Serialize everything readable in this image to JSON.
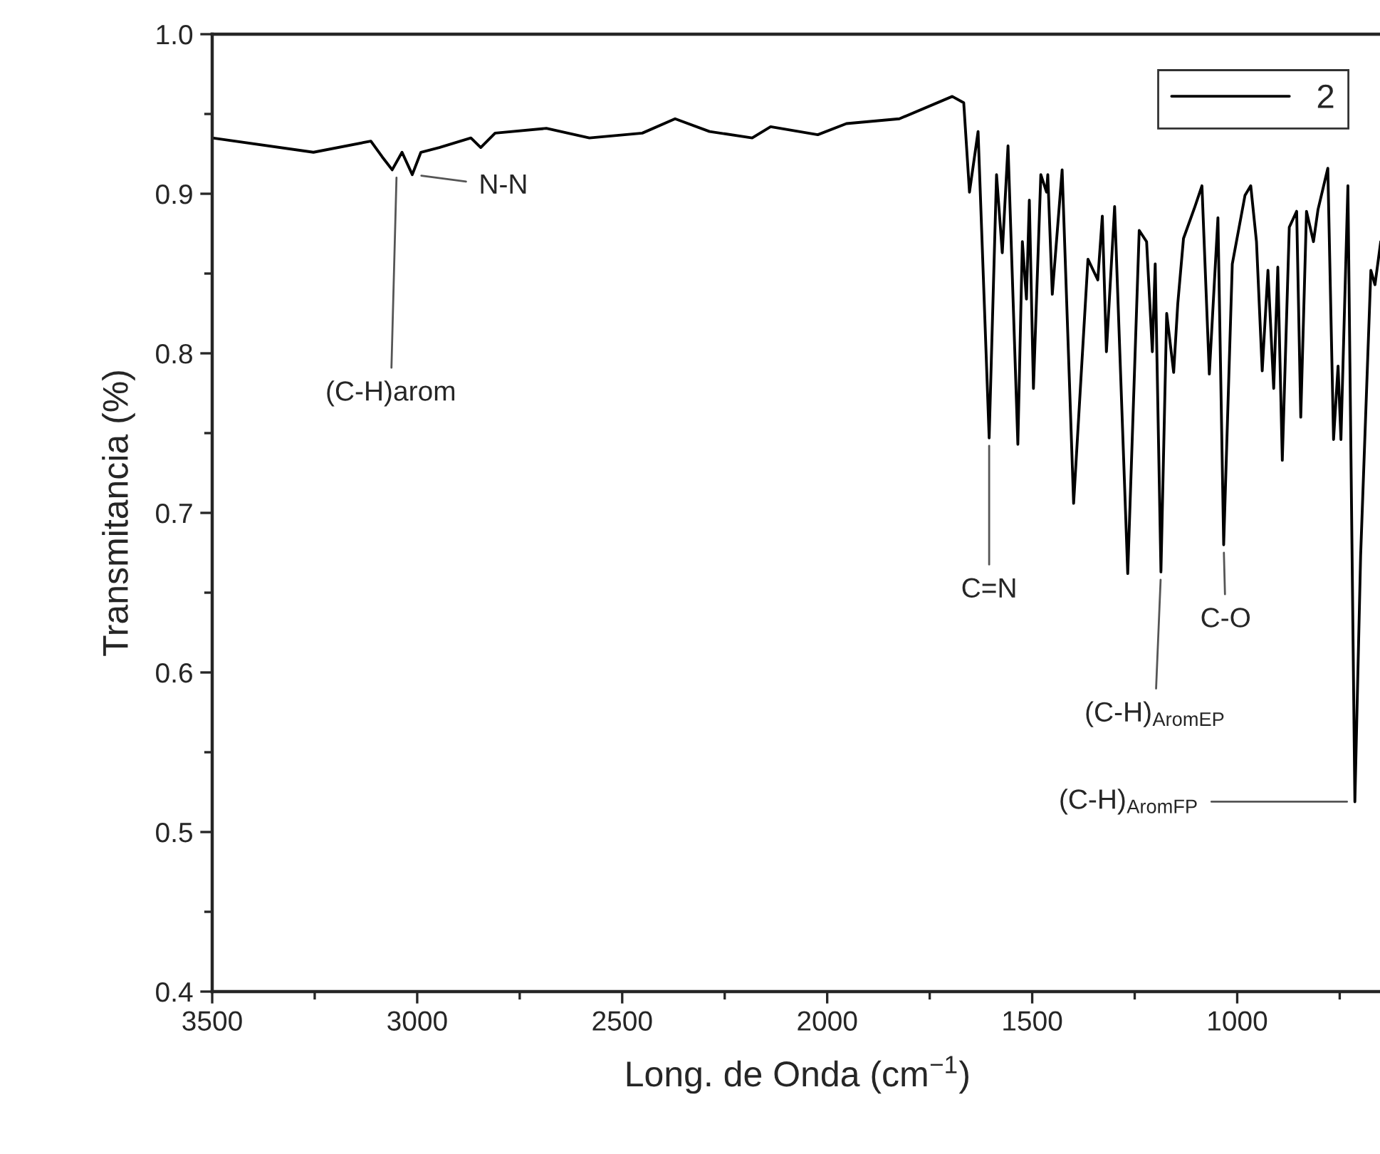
{
  "chart_data": {
    "type": "line",
    "xlabel": "Long. de Onda (cm$^{−1}$)",
    "ylabel": "Transmitancia (%)",
    "xlim": [
      3500,
      645
    ],
    "xticks": [
      3500,
      3000,
      2500,
      2000,
      1500,
      1000
    ],
    "ylim": [
      0.4,
      1.0
    ],
    "yticks": [
      0.4,
      0.5,
      0.6,
      0.7,
      0.8,
      0.9,
      {
        "value": 1.0,
        "label": "1.0"
      }
    ],
    "grid": false,
    "legend": "top right",
    "line_style": "solid",
    "marker": "none",
    "series": [
      {
        "name": "2",
        "color": "#000000",
        "x": [
          3500,
          3253,
          3113,
          3085,
          3061,
          3037,
          3012,
          2991,
          2946,
          2869,
          2845,
          2810,
          2685,
          2580,
          2451,
          2371,
          2287,
          2183,
          2138,
          2023,
          1953,
          1824,
          1695,
          1667,
          1653,
          1632,
          1605,
          1587,
          1573,
          1559,
          1535,
          1524,
          1514,
          1507,
          1497,
          1479,
          1465,
          1462,
          1451,
          1427,
          1399,
          1364,
          1340,
          1329,
          1319,
          1299,
          1267,
          1239,
          1221,
          1207,
          1200,
          1186,
          1172,
          1155,
          1145,
          1131,
          1103,
          1086,
          1068,
          1047,
          1033,
          1012,
          981,
          967,
          953,
          939,
          925,
          911,
          901,
          890,
          873,
          855,
          845,
          831,
          814,
          803,
          779,
          765,
          754,
          747,
          730,
          713,
          699,
          674,
          664,
          650
        ],
        "values": [
          0.935,
          0.926,
          0.933,
          0.923,
          0.915,
          0.926,
          0.912,
          0.926,
          0.929,
          0.935,
          0.929,
          0.938,
          0.941,
          0.935,
          0.938,
          0.947,
          0.939,
          0.935,
          0.942,
          0.937,
          0.944,
          0.947,
          0.961,
          0.957,
          0.901,
          0.939,
          0.747,
          0.912,
          0.863,
          0.93,
          0.743,
          0.87,
          0.834,
          0.896,
          0.778,
          0.912,
          0.901,
          0.912,
          0.837,
          0.915,
          0.706,
          0.859,
          0.846,
          0.886,
          0.801,
          0.892,
          0.662,
          0.877,
          0.87,
          0.801,
          0.856,
          0.663,
          0.825,
          0.788,
          0.831,
          0.872,
          0.892,
          0.905,
          0.787,
          0.885,
          0.68,
          0.856,
          0.899,
          0.905,
          0.87,
          0.789,
          0.852,
          0.778,
          0.854,
          0.733,
          0.879,
          0.889,
          0.76,
          0.889,
          0.87,
          0.89,
          0.916,
          0.746,
          0.792,
          0.746,
          0.905,
          0.519,
          0.673,
          0.852,
          0.843,
          0.87
        ]
      }
    ],
    "annotations": [
      {
        "text": "(C-H)arom",
        "x": 3050,
        "y": 0.915
      },
      {
        "text": "N-N",
        "x": 3009,
        "y": 0.912
      },
      {
        "text": "C=N",
        "x": 1605,
        "y": 0.747
      },
      {
        "text": "(C-H)$_{AromEP}$",
        "x": 1186,
        "y": 0.663
      },
      {
        "text": "C-O",
        "x": 1033,
        "y": 0.68
      },
      {
        "text": "(C-H)$_{AromFP}$",
        "x": 713,
        "y": 0.519
      }
    ]
  }
}
